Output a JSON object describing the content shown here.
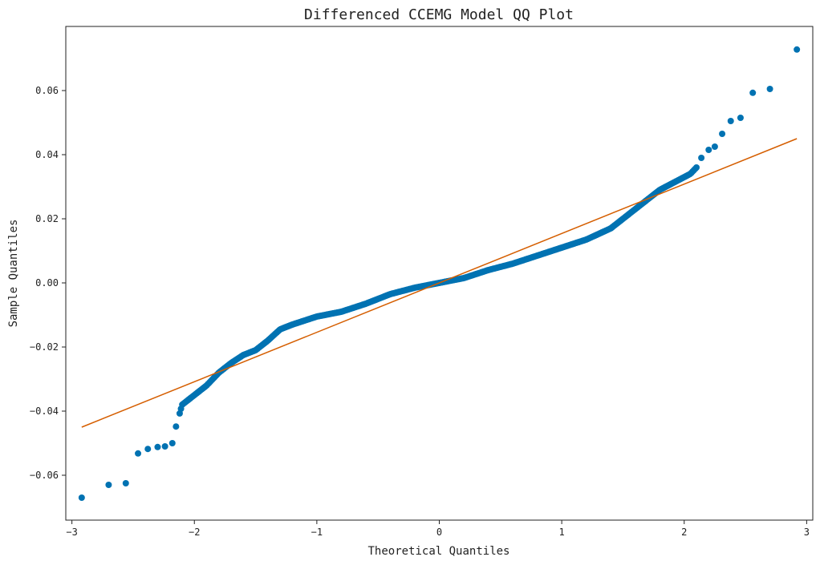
{
  "chart_data": {
    "type": "scatter",
    "title": "Differenced CCEMG Model QQ Plot",
    "xlabel": "Theoretical Quantiles",
    "ylabel": "Sample Quantiles",
    "xlim": [
      -3.05,
      3.05
    ],
    "ylim": [
      -0.074,
      0.08
    ],
    "xticks": [
      -3,
      -2,
      -1,
      0,
      1,
      2,
      3
    ],
    "xtick_labels": [
      "−3",
      "−2",
      "−1",
      "0",
      "1",
      "2",
      "3"
    ],
    "yticks": [
      -0.06,
      -0.04,
      -0.02,
      0.0,
      0.02,
      0.04,
      0.06
    ],
    "ytick_labels": [
      "−0.06",
      "−0.04",
      "−0.02",
      "0.00",
      "0.02",
      "0.04",
      "0.06"
    ],
    "grid": false,
    "colors": {
      "points": "#0072b2",
      "line": "#d55e00",
      "axes": "#222222"
    },
    "reference_line": {
      "x": [
        -2.92,
        2.92
      ],
      "y": [
        -0.045,
        0.045
      ]
    },
    "sample_count": 400,
    "knots": [
      [
        -2.92,
        -0.067
      ],
      [
        -2.7,
        -0.063
      ],
      [
        -2.56,
        -0.0625
      ],
      [
        -2.46,
        -0.0532
      ],
      [
        -2.38,
        -0.0518
      ],
      [
        -2.3,
        -0.0512
      ],
      [
        -2.24,
        -0.051
      ],
      [
        -2.18,
        -0.05
      ],
      [
        -2.15,
        -0.0448
      ],
      [
        -2.1,
        -0.038
      ],
      [
        -2.0,
        -0.035
      ],
      [
        -1.9,
        -0.032
      ],
      [
        -1.8,
        -0.028
      ],
      [
        -1.7,
        -0.025
      ],
      [
        -1.6,
        -0.0225
      ],
      [
        -1.5,
        -0.021
      ],
      [
        -1.4,
        -0.018
      ],
      [
        -1.3,
        -0.0145
      ],
      [
        -1.2,
        -0.013
      ],
      [
        -1.0,
        -0.0105
      ],
      [
        -0.8,
        -0.009
      ],
      [
        -0.6,
        -0.0065
      ],
      [
        -0.4,
        -0.0035
      ],
      [
        -0.2,
        -0.0015
      ],
      [
        0.0,
        0.0
      ],
      [
        0.2,
        0.0015
      ],
      [
        0.4,
        0.004
      ],
      [
        0.6,
        0.006
      ],
      [
        0.8,
        0.0085
      ],
      [
        1.0,
        0.011
      ],
      [
        1.2,
        0.0135
      ],
      [
        1.4,
        0.017
      ],
      [
        1.5,
        0.02
      ],
      [
        1.6,
        0.023
      ],
      [
        1.7,
        0.026
      ],
      [
        1.8,
        0.029
      ],
      [
        1.9,
        0.031
      ],
      [
        2.0,
        0.033
      ],
      [
        2.05,
        0.034
      ],
      [
        2.1,
        0.036
      ]
    ],
    "tail_points": [
      [
        2.14,
        0.039
      ],
      [
        2.2,
        0.0415
      ],
      [
        2.25,
        0.0425
      ],
      [
        2.31,
        0.0465
      ],
      [
        2.38,
        0.0505
      ],
      [
        2.46,
        0.0515
      ],
      [
        2.56,
        0.0593
      ],
      [
        2.7,
        0.0605
      ],
      [
        2.92,
        0.0728
      ]
    ]
  }
}
